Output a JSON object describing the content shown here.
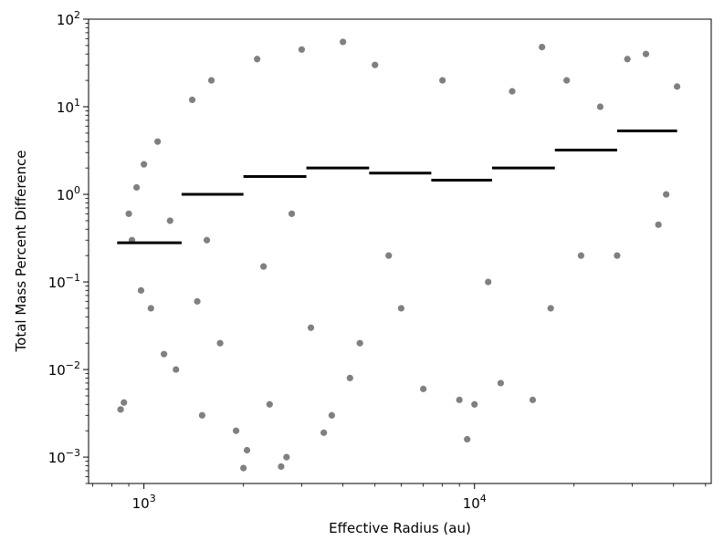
{
  "chart_data": {
    "type": "scatter",
    "title": "",
    "xlabel": "Effective Radius (au)",
    "ylabel": "Total Mass Percent Difference",
    "xscale": "log",
    "yscale": "log",
    "xlim": [
      680,
      52000
    ],
    "ylim": [
      0.0005,
      100
    ],
    "grid": false,
    "legend": "none",
    "x_ticks": [
      {
        "value": 1000,
        "base": "10",
        "exp": "3"
      },
      {
        "value": 10000,
        "base": "10",
        "exp": "4"
      }
    ],
    "y_ticks": [
      {
        "value": 0.001,
        "base": "10",
        "exp": "−3"
      },
      {
        "value": 0.01,
        "base": "10",
        "exp": "−2"
      },
      {
        "value": 0.1,
        "base": "10",
        "exp": "−1"
      },
      {
        "value": 1,
        "base": "10",
        "exp": "0"
      },
      {
        "value": 10,
        "base": "10",
        "exp": "1"
      },
      {
        "value": 100,
        "base": "10",
        "exp": "2"
      }
    ],
    "colors": {
      "points": "#808080",
      "bin_medians": "#000000"
    },
    "series": [
      {
        "values_note_free": true,
        "points": [
          [
            850,
            0.0035
          ],
          [
            870,
            0.0042
          ],
          [
            900,
            0.6
          ],
          [
            920,
            0.3
          ],
          [
            950,
            1.2
          ],
          [
            980,
            0.08
          ],
          [
            1000,
            2.2
          ],
          [
            1050,
            0.05
          ],
          [
            1100,
            4.0
          ],
          [
            1150,
            0.015
          ],
          [
            1200,
            0.5
          ],
          [
            1250,
            0.01
          ],
          [
            1400,
            12
          ],
          [
            1450,
            0.06
          ],
          [
            1500,
            0.003
          ],
          [
            1550,
            0.3
          ],
          [
            1600,
            20
          ],
          [
            1700,
            0.02
          ],
          [
            1900,
            0.002
          ],
          [
            2000,
            0.00075
          ],
          [
            2050,
            0.0012
          ],
          [
            2200,
            35
          ],
          [
            2300,
            0.15
          ],
          [
            2400,
            0.004
          ],
          [
            2600,
            0.00078
          ],
          [
            2700,
            0.001
          ],
          [
            2800,
            0.6
          ],
          [
            3000,
            45
          ],
          [
            3200,
            0.03
          ],
          [
            3500,
            0.0019
          ],
          [
            3700,
            0.003
          ],
          [
            4000,
            55
          ],
          [
            4200,
            0.008
          ],
          [
            4500,
            0.02
          ],
          [
            5000,
            30
          ],
          [
            5500,
            0.2
          ],
          [
            6000,
            0.05
          ],
          [
            7000,
            0.006
          ],
          [
            8000,
            20
          ],
          [
            9000,
            0.0045
          ],
          [
            9500,
            0.0016
          ],
          [
            10000,
            0.004
          ],
          [
            11000,
            0.1
          ],
          [
            12000,
            0.007
          ],
          [
            13000,
            15
          ],
          [
            15000,
            0.0045
          ],
          [
            16000,
            48
          ],
          [
            17000,
            0.05
          ],
          [
            19000,
            20
          ],
          [
            21000,
            0.2
          ],
          [
            24000,
            10
          ],
          [
            27000,
            0.2
          ],
          [
            29000,
            35
          ],
          [
            33000,
            40
          ],
          [
            36000,
            0.45
          ],
          [
            38000,
            1.0
          ],
          [
            41000,
            17
          ]
        ]
      },
      {
        "name": "",
        "kind": "bin_medians",
        "bins": [
          {
            "x0": 830,
            "x1": 1300,
            "y": 0.28
          },
          {
            "x0": 1300,
            "x1": 2000,
            "y": 1.0
          },
          {
            "x0": 2000,
            "x1": 3100,
            "y": 1.6
          },
          {
            "x0": 3100,
            "x1": 4800,
            "y": 2.0
          },
          {
            "x0": 4800,
            "x1": 7400,
            "y": 1.75
          },
          {
            "x0": 7400,
            "x1": 11300,
            "y": 1.45
          },
          {
            "x0": 11300,
            "x1": 17500,
            "y": 2.0
          },
          {
            "x0": 17500,
            "x1": 27000,
            "y": 3.2
          },
          {
            "x0": 27000,
            "x1": 41000,
            "y": 5.3
          }
        ]
      }
    ]
  }
}
